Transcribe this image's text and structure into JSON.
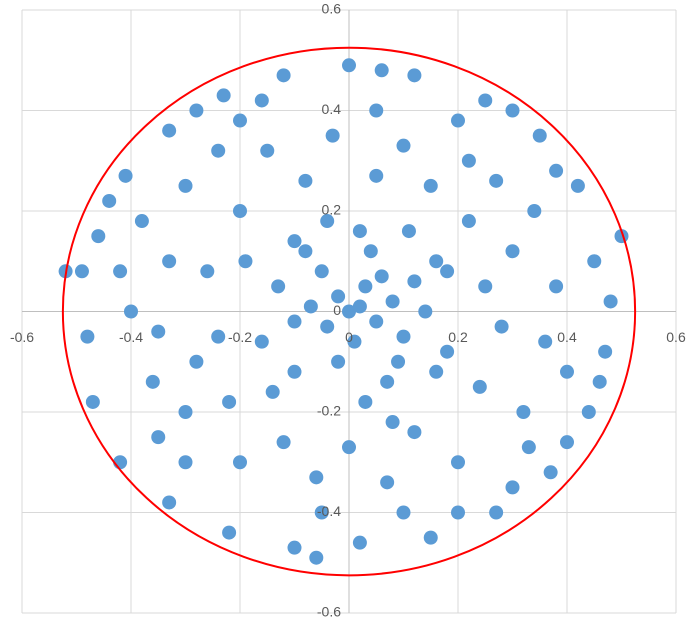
{
  "chart_data": {
    "type": "scatter",
    "xlim": [
      -0.6,
      0.6
    ],
    "ylim": [
      -0.6,
      0.6
    ],
    "xticks": [
      -0.6,
      -0.4,
      -0.2,
      0,
      0.2,
      0.4,
      0.6
    ],
    "yticks": [
      -0.6,
      -0.4,
      -0.2,
      0,
      0.2,
      0.4,
      0.6
    ],
    "grid": true,
    "circle": {
      "radius": 0.525,
      "color": "#ff0000"
    },
    "series": [
      {
        "color": "#5b9bd5",
        "x": [
          0,
          0.02,
          -0.02,
          0.05,
          0.03,
          -0.04,
          0.08,
          0.06,
          -0.07,
          0.01,
          0.1,
          -0.05,
          0.12,
          -0.1,
          0.04,
          -0.02,
          0.09,
          -0.08,
          0.14,
          -0.13,
          0.02,
          0.07,
          -0.1,
          0.16,
          -0.16,
          0.11,
          -0.04,
          0.03,
          0.18,
          -0.19,
          0.25,
          0.22,
          0.15,
          0.05,
          -0.08,
          -0.2,
          -0.26,
          -0.24,
          -0.22,
          -0.12,
          0,
          0.12,
          0.24,
          0.28,
          0.3,
          0.27,
          0.1,
          -0.03,
          -0.15,
          -0.3,
          -0.33,
          -0.35,
          -0.3,
          -0.2,
          -0.06,
          0.07,
          0.2,
          0.32,
          0.36,
          0.34,
          0.45,
          0.42,
          0.35,
          0.25,
          0.12,
          0,
          -0.12,
          -0.23,
          -0.33,
          -0.41,
          -0.46,
          -0.49,
          -0.48,
          -0.47,
          -0.42,
          -0.33,
          -0.22,
          -0.1,
          0.02,
          0.15,
          0.27,
          0.37,
          0.44,
          0.47,
          0.48,
          0.46,
          -0.44,
          0.06,
          -0.06,
          0.4,
          0.38,
          -0.4,
          0.2,
          -0.2,
          0.3,
          -0.3,
          0.18,
          -0.1,
          0.08,
          -0.14,
          0.38,
          -0.38,
          -0.36,
          0.4,
          0.2,
          -0.16,
          0.16,
          -0.28,
          0.22,
          -0.24,
          -0.42,
          0.5,
          -0.52,
          0.05,
          -0.05,
          0.3,
          -0.28,
          0.1,
          -0.35,
          0.33
        ],
        "y": [
          0,
          0.01,
          0.03,
          -0.02,
          0.05,
          -0.03,
          0.02,
          0.07,
          0.01,
          -0.06,
          -0.05,
          0.08,
          0.06,
          -0.02,
          0.12,
          -0.1,
          -0.1,
          0.12,
          0,
          0.05,
          0.16,
          -0.14,
          -0.12,
          0.1,
          -0.06,
          0.16,
          0.18,
          -0.18,
          -0.08,
          0.1,
          0.05,
          0.18,
          0.25,
          0.27,
          0.26,
          0.2,
          0.08,
          -0.05,
          -0.18,
          -0.26,
          -0.27,
          -0.24,
          -0.15,
          -0.03,
          0.12,
          0.26,
          0.33,
          0.35,
          0.32,
          0.25,
          0.1,
          -0.04,
          -0.2,
          -0.3,
          -0.33,
          -0.34,
          -0.3,
          -0.2,
          -0.06,
          0.2,
          0.1,
          0.25,
          0.35,
          0.42,
          0.47,
          0.49,
          0.47,
          0.43,
          0.36,
          0.27,
          0.15,
          0.08,
          -0.05,
          -0.18,
          -0.3,
          -0.38,
          -0.44,
          -0.47,
          -0.46,
          -0.45,
          -0.4,
          -0.32,
          -0.2,
          -0.08,
          0.02,
          -0.14,
          0.22,
          0.48,
          -0.49,
          -0.26,
          0.05,
          0,
          0.38,
          0.38,
          -0.35,
          -0.3,
          0.08,
          0.14,
          -0.22,
          -0.16,
          0.28,
          0.18,
          -0.14,
          -0.12,
          -0.4,
          0.42,
          -0.12,
          -0.1,
          0.3,
          0.32,
          0.08,
          0.15,
          0.08,
          0.4,
          -0.4,
          0.4,
          0.4,
          -0.4,
          -0.25,
          -0.27
        ]
      }
    ]
  }
}
